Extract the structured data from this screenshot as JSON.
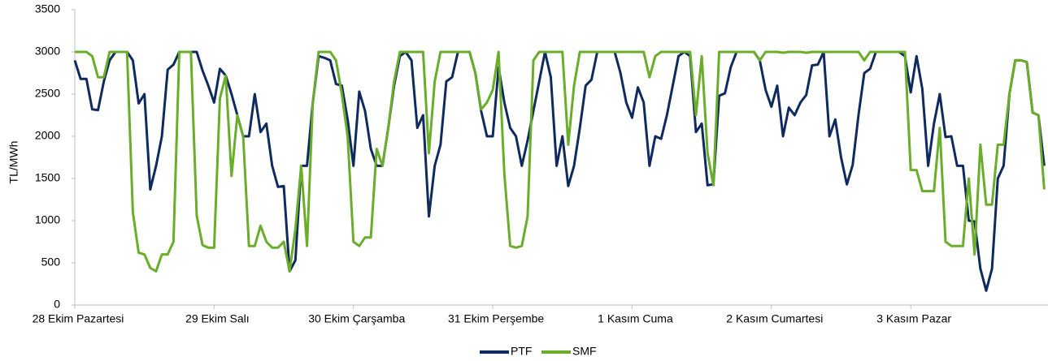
{
  "chart_data": {
    "type": "line",
    "ylabel": "TL/MWh",
    "categories": [
      "28 Ekim Pazartesi",
      null,
      null,
      null,
      null,
      null,
      null,
      null,
      null,
      null,
      null,
      null,
      null,
      null,
      null,
      null,
      null,
      null,
      null,
      null,
      null,
      null,
      null,
      null,
      "29 Ekim Salı",
      null,
      null,
      null,
      null,
      null,
      null,
      null,
      null,
      null,
      null,
      null,
      null,
      null,
      null,
      null,
      null,
      null,
      null,
      null,
      null,
      null,
      null,
      null,
      "30 Ekim Çarşamba",
      null,
      null,
      null,
      null,
      null,
      null,
      null,
      null,
      null,
      null,
      null,
      null,
      null,
      null,
      null,
      null,
      null,
      null,
      null,
      null,
      null,
      null,
      null,
      "31 Ekim Perşembe",
      null,
      null,
      null,
      null,
      null,
      null,
      null,
      null,
      null,
      null,
      null,
      null,
      null,
      null,
      null,
      null,
      null,
      null,
      null,
      null,
      null,
      null,
      null,
      "1 Kasım Cuma",
      null,
      null,
      null,
      null,
      null,
      null,
      null,
      null,
      null,
      null,
      null,
      null,
      null,
      null,
      null,
      null,
      null,
      null,
      null,
      null,
      null,
      null,
      null,
      "2 Kasım Cumartesi",
      null,
      null,
      null,
      null,
      null,
      null,
      null,
      null,
      null,
      null,
      null,
      null,
      null,
      null,
      null,
      null,
      null,
      null,
      null,
      null,
      null,
      null,
      null,
      "3 Kasım Pazar",
      null,
      null,
      null,
      null,
      null,
      null,
      null,
      null,
      null,
      null,
      null,
      null,
      null,
      null,
      null,
      null,
      null,
      null,
      null,
      null,
      null,
      null,
      null
    ],
    "series": [
      {
        "name": "PTF",
        "color": "#0e2a5e",
        "values": [
          2900,
          2680,
          2680,
          2320,
          2310,
          2650,
          2900,
          3000,
          3000,
          3000,
          2900,
          2390,
          2500,
          1370,
          1650,
          2000,
          2790,
          2850,
          3000,
          3000,
          3000,
          3000,
          2780,
          2600,
          2400,
          2800,
          2720,
          2500,
          2250,
          2000,
          2000,
          2500,
          2050,
          2150,
          1650,
          1400,
          1410,
          400,
          530,
          1650,
          1650,
          2400,
          2950,
          2930,
          2900,
          2620,
          2600,
          2200,
          1650,
          2530,
          2300,
          1850,
          1650,
          1650,
          2100,
          2600,
          2950,
          3000,
          2900,
          2100,
          2250,
          1050,
          1650,
          1900,
          2650,
          2700,
          3000,
          3000,
          3000,
          2750,
          2300,
          2000,
          2000,
          2820,
          2400,
          2100,
          2000,
          1650,
          1950,
          2300,
          2650,
          3000,
          2700,
          1650,
          2000,
          1410,
          1650,
          2100,
          2600,
          2670,
          3000,
          3000,
          3000,
          3000,
          2750,
          2400,
          2220,
          2580,
          2400,
          1650,
          2000,
          1970,
          2250,
          2600,
          2950,
          3000,
          2950,
          2050,
          2150,
          1420,
          1430,
          2480,
          2510,
          2820,
          3000,
          3000,
          3000,
          3000,
          2900,
          2550,
          2350,
          2600,
          2000,
          2340,
          2250,
          2400,
          2490,
          2840,
          2850,
          3000,
          2000,
          2200,
          1750,
          1430,
          1660,
          2250,
          2750,
          2800,
          3000,
          3000,
          3000,
          3000,
          3000,
          2950,
          2520,
          2950,
          2560,
          1650,
          2150,
          2500,
          1990,
          2000,
          1650,
          1650,
          1000,
          990,
          430,
          170,
          430,
          1500,
          1650,
          2500,
          2900,
          2900,
          2880,
          2280,
          2250,
          1650
        ]
      },
      {
        "name": "SMF",
        "color": "#6aad2b",
        "values": [
          3000,
          3000,
          3000,
          2950,
          2700,
          2700,
          3000,
          3000,
          3000,
          3000,
          1100,
          620,
          600,
          440,
          400,
          600,
          600,
          750,
          3000,
          3000,
          3000,
          1060,
          710,
          680,
          680,
          2450,
          2720,
          1530,
          2250,
          2000,
          700,
          700,
          940,
          750,
          680,
          680,
          750,
          400,
          900,
          1650,
          700,
          2400,
          3000,
          3000,
          3000,
          2900,
          2500,
          2000,
          750,
          700,
          800,
          800,
          1850,
          1650,
          2100,
          2650,
          3000,
          3000,
          3000,
          3000,
          3000,
          1800,
          2650,
          3000,
          3000,
          3000,
          3000,
          3000,
          3000,
          2750,
          2320,
          2400,
          2550,
          3000,
          1550,
          700,
          680,
          700,
          1050,
          2900,
          3000,
          3000,
          3000,
          3000,
          3000,
          1900,
          2600,
          3000,
          3000,
          3000,
          3000,
          3000,
          3000,
          3000,
          3000,
          3000,
          3000,
          3000,
          3000,
          2700,
          2950,
          3000,
          3000,
          3000,
          3000,
          3000,
          3000,
          2250,
          2950,
          1800,
          1420,
          3000,
          3000,
          3000,
          3000,
          3000,
          3000,
          3000,
          2900,
          3000,
          3000,
          3000,
          2990,
          3000,
          3000,
          3000,
          2990,
          3000,
          3000,
          3000,
          3000,
          3000,
          3000,
          3000,
          3000,
          3000,
          2900,
          3000,
          3000,
          3000,
          3000,
          3000,
          3000,
          3000,
          1600,
          1600,
          1350,
          1350,
          1350,
          2100,
          750,
          700,
          700,
          700,
          1500,
          600,
          1900,
          1190,
          1190,
          1900,
          1900,
          2500,
          2900,
          2900,
          2880,
          2280,
          2250,
          1370
        ]
      }
    ],
    "ylim": [
      0,
      3500
    ],
    "yticks": [
      0,
      500,
      1000,
      1500,
      2000,
      2500,
      3000,
      3500
    ],
    "grid": false,
    "legend": "bottom"
  }
}
